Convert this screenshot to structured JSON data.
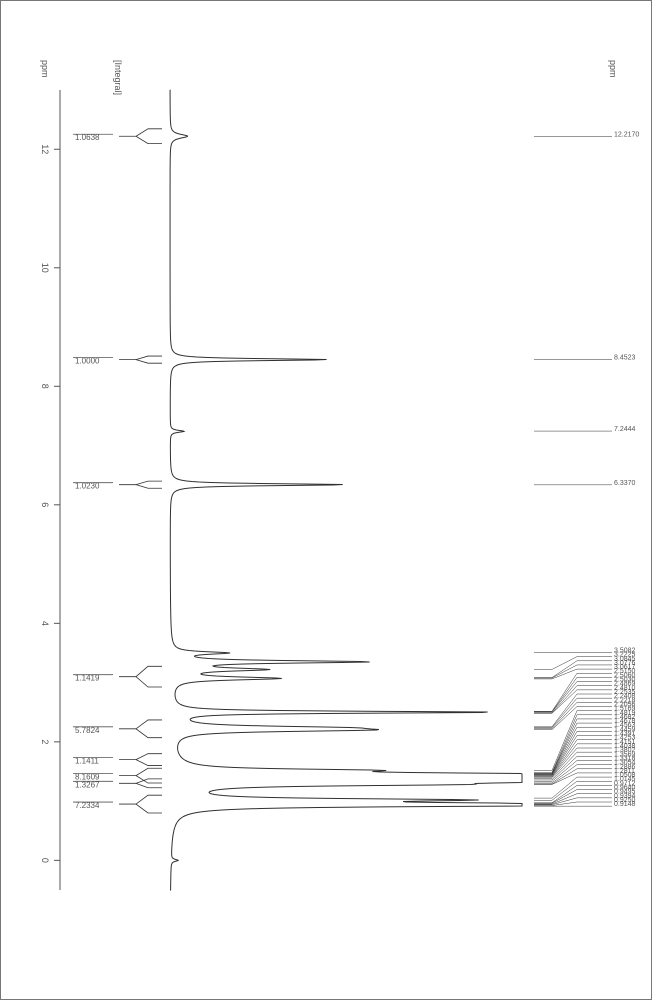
{
  "nmr": {
    "type": "nmr-1h-spectrum",
    "rotation_deg": -90,
    "background_color": "#ffffff",
    "trace_color": "#303030",
    "trace_width": 1,
    "axis": {
      "label": "ppm",
      "label_fontsize": 9,
      "tick_fontsize": 9,
      "tick_color": "#555555",
      "range_ppm": [
        -0.5,
        13
      ],
      "ticks": [
        0,
        2,
        4,
        6,
        8,
        10,
        12
      ],
      "tick_len": 6
    },
    "ppm_text": "ppm",
    "integral_axis_label": "[Integral]",
    "peak_list": {
      "values_ppm": [
        0.9148,
        0.925,
        0.9394,
        0.9495,
        0.964,
        0.9712,
        1.0145,
        1.0508,
        1.2811,
        1.2886,
        1.3054,
        1.3318,
        1.3569,
        1.3802,
        1.4038,
        1.4151,
        1.4253,
        1.4391,
        1.4459,
        1.4563,
        1.4678,
        1.4682,
        1.4819,
        1.5169,
        2.2056,
        2.2218,
        2.2408,
        2.2535,
        2.481,
        2.4869,
        2.503,
        2.506,
        2.515,
        3.0617,
        3.0776,
        3.0845,
        3.2225,
        3.5082
      ],
      "label_fontsize": 7,
      "label_color": "#555555",
      "line_color": "#303030",
      "line_width": 0.5
    },
    "singlets": [
      {
        "ppm": 6.337
      },
      {
        "ppm": 7.2444
      },
      {
        "ppm": 8.4523
      },
      {
        "ppm": 12.217
      }
    ],
    "spectrum": {
      "baseline_y": 0,
      "peaks": [
        {
          "ppm": 0.0,
          "height": 0.02
        },
        {
          "ppm": 0.93,
          "height": 0.85,
          "width": 0.05
        },
        {
          "ppm": 0.95,
          "height": 0.8,
          "width": 0.05
        },
        {
          "ppm": 1.02,
          "height": 0.7,
          "width": 0.05
        },
        {
          "ppm": 1.28,
          "height": 0.55,
          "width": 0.05
        },
        {
          "ppm": 1.33,
          "height": 0.95,
          "width": 0.05
        },
        {
          "ppm": 1.38,
          "height": 0.6,
          "width": 0.05
        },
        {
          "ppm": 1.4,
          "height": 0.65,
          "width": 0.05
        },
        {
          "ppm": 1.43,
          "height": 0.7,
          "width": 0.05
        },
        {
          "ppm": 1.46,
          "height": 0.55,
          "width": 0.05
        },
        {
          "ppm": 1.52,
          "height": 0.4,
          "width": 0.05
        },
        {
          "ppm": 2.2,
          "height": 0.45,
          "width": 0.06
        },
        {
          "ppm": 2.24,
          "height": 0.35,
          "width": 0.06
        },
        {
          "ppm": 2.5,
          "height": 0.92,
          "width": 0.04
        },
        {
          "ppm": 3.07,
          "height": 0.3,
          "width": 0.06
        },
        {
          "ppm": 3.22,
          "height": 0.25,
          "width": 0.06
        },
        {
          "ppm": 3.35,
          "height": 0.55,
          "width": 0.05
        },
        {
          "ppm": 3.5,
          "height": 0.15,
          "width": 0.05
        },
        {
          "ppm": 6.34,
          "height": 0.5,
          "width": 0.04
        },
        {
          "ppm": 7.24,
          "height": 0.04,
          "width": 0.04
        },
        {
          "ppm": 8.45,
          "height": 0.45,
          "width": 0.04
        },
        {
          "ppm": 12.22,
          "height": 0.05,
          "width": 0.08
        }
      ]
    },
    "integrals": [
      {
        "ppm": 0.95,
        "value": "7.2334",
        "span": 0.3
      },
      {
        "ppm": 1.3,
        "value": "1.3267",
        "span": 0.15
      },
      {
        "ppm": 1.43,
        "value": "8.1609",
        "span": 0.25
      },
      {
        "ppm": 1.7,
        "value": "1.1411",
        "span": 0.2
      },
      {
        "ppm": 2.22,
        "value": "5.7824",
        "span": 0.3
      },
      {
        "ppm": 3.1,
        "value": "1.1419",
        "span": 0.35
      },
      {
        "ppm": 6.34,
        "value": "1.0230",
        "span": 0.12
      },
      {
        "ppm": 8.45,
        "value": "1.0000",
        "span": 0.12
      },
      {
        "ppm": 12.22,
        "value": "1.0638",
        "span": 0.25
      }
    ],
    "integral_style": {
      "box_border": "#555555",
      "box_bg": "#ffffff",
      "fontsize": 8,
      "underline_width": 0.8,
      "bracket_color": "#303030"
    }
  }
}
